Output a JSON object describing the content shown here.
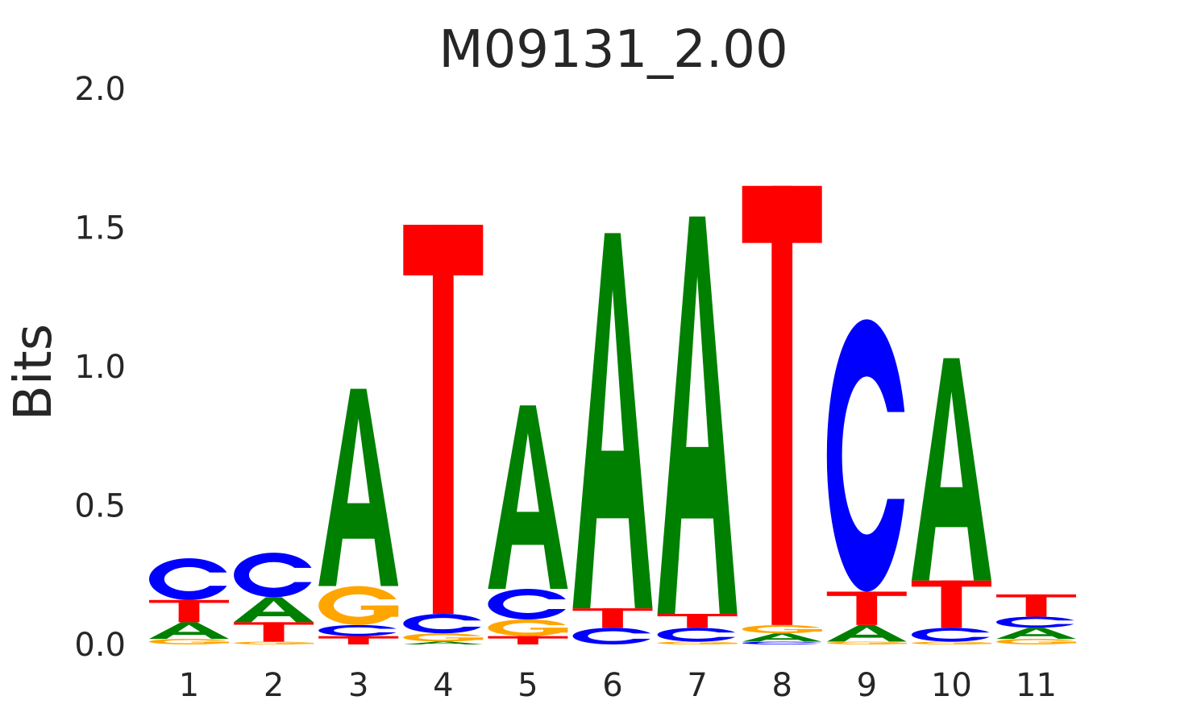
{
  "chart_data": {
    "type": "sequence-logo",
    "title": "M09131_2.00",
    "ylabel": "Bits",
    "xlabel": "",
    "ylim": [
      0,
      2
    ],
    "yticks": [
      "0.0",
      "0.5",
      "1.0",
      "1.5",
      "2.0"
    ],
    "positions": [
      "1",
      "2",
      "3",
      "4",
      "5",
      "6",
      "7",
      "8",
      "9",
      "10",
      "11"
    ],
    "colors": {
      "A": "#008000",
      "C": "#0000ff",
      "G": "#ffa500",
      "T": "#ff0000"
    },
    "columns": [
      [
        {
          "base": "G",
          "bits": 0.02
        },
        {
          "base": "A",
          "bits": 0.06
        },
        {
          "base": "T",
          "bits": 0.08
        },
        {
          "base": "C",
          "bits": 0.15
        }
      ],
      [
        {
          "base": "G",
          "bits": 0.01
        },
        {
          "base": "T",
          "bits": 0.07
        },
        {
          "base": "A",
          "bits": 0.09
        },
        {
          "base": "C",
          "bits": 0.16
        }
      ],
      [
        {
          "base": "T",
          "bits": 0.03
        },
        {
          "base": "C",
          "bits": 0.04
        },
        {
          "base": "G",
          "bits": 0.14
        },
        {
          "base": "A",
          "bits": 0.71
        }
      ],
      [
        {
          "base": "A",
          "bits": 0.01
        },
        {
          "base": "G",
          "bits": 0.03
        },
        {
          "base": "C",
          "bits": 0.07
        },
        {
          "base": "T",
          "bits": 1.4
        }
      ],
      [
        {
          "base": "T",
          "bits": 0.03
        },
        {
          "base": "G",
          "bits": 0.06
        },
        {
          "base": "C",
          "bits": 0.11
        },
        {
          "base": "A",
          "bits": 0.66
        }
      ],
      [
        {
          "base": "C",
          "bits": 0.06
        },
        {
          "base": "T",
          "bits": 0.07
        },
        {
          "base": "A",
          "bits": 1.35
        }
      ],
      [
        {
          "base": "G",
          "bits": 0.01
        },
        {
          "base": "C",
          "bits": 0.05
        },
        {
          "base": "T",
          "bits": 0.05
        },
        {
          "base": "A",
          "bits": 1.43
        }
      ],
      [
        {
          "base": "C",
          "bits": 0.01
        },
        {
          "base": "A",
          "bits": 0.03
        },
        {
          "base": "G",
          "bits": 0.03
        },
        {
          "base": "T",
          "bits": 1.58
        }
      ],
      [
        {
          "base": "G",
          "bits": 0.01
        },
        {
          "base": "A",
          "bits": 0.06
        },
        {
          "base": "T",
          "bits": 0.12
        },
        {
          "base": "C",
          "bits": 0.98
        }
      ],
      [
        {
          "base": "G",
          "bits": 0.01
        },
        {
          "base": "C",
          "bits": 0.05
        },
        {
          "base": "T",
          "bits": 0.17
        },
        {
          "base": "A",
          "bits": 0.8
        }
      ],
      [
        {
          "base": "G",
          "bits": 0.02
        },
        {
          "base": "A",
          "bits": 0.04
        },
        {
          "base": "C",
          "bits": 0.04
        },
        {
          "base": "T",
          "bits": 0.08
        }
      ]
    ]
  }
}
